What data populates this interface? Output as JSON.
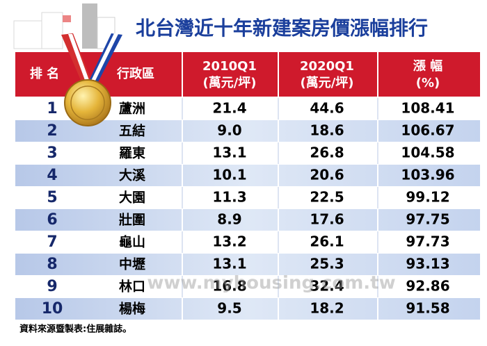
{
  "header": {
    "title": "北台灣近十年新建案房價漲幅排行"
  },
  "table": {
    "columns": [
      [
        "排 名"
      ],
      [
        "行政區"
      ],
      [
        "2010Q1",
        "(萬元/坪)"
      ],
      [
        "2020Q1",
        "(萬元/坪)"
      ],
      [
        "漲 幅",
        "(%)"
      ]
    ],
    "rows": [
      [
        "1",
        "蘆洲",
        "21.4",
        "44.6",
        "108.41"
      ],
      [
        "2",
        "五結",
        "9.0",
        "18.6",
        "106.67"
      ],
      [
        "3",
        "羅東",
        "13.1",
        "26.8",
        "104.58"
      ],
      [
        "4",
        "大溪",
        "10.1",
        "20.6",
        "103.96"
      ],
      [
        "5",
        "大園",
        "11.3",
        "22.5",
        "99.12"
      ],
      [
        "6",
        "壯圍",
        "8.9",
        "17.6",
        "97.75"
      ],
      [
        "7",
        "龜山",
        "13.2",
        "26.1",
        "97.73"
      ],
      [
        "8",
        "中壢",
        "13.1",
        "25.3",
        "93.13"
      ],
      [
        "9",
        "林口",
        "16.8",
        "32.4",
        "92.86"
      ],
      [
        "10",
        "楊梅",
        "9.5",
        "18.2",
        "91.58"
      ]
    ]
  },
  "watermark": "www.myhousing.com.tw",
  "source": "資料來源暨製表:住展雜誌。"
}
